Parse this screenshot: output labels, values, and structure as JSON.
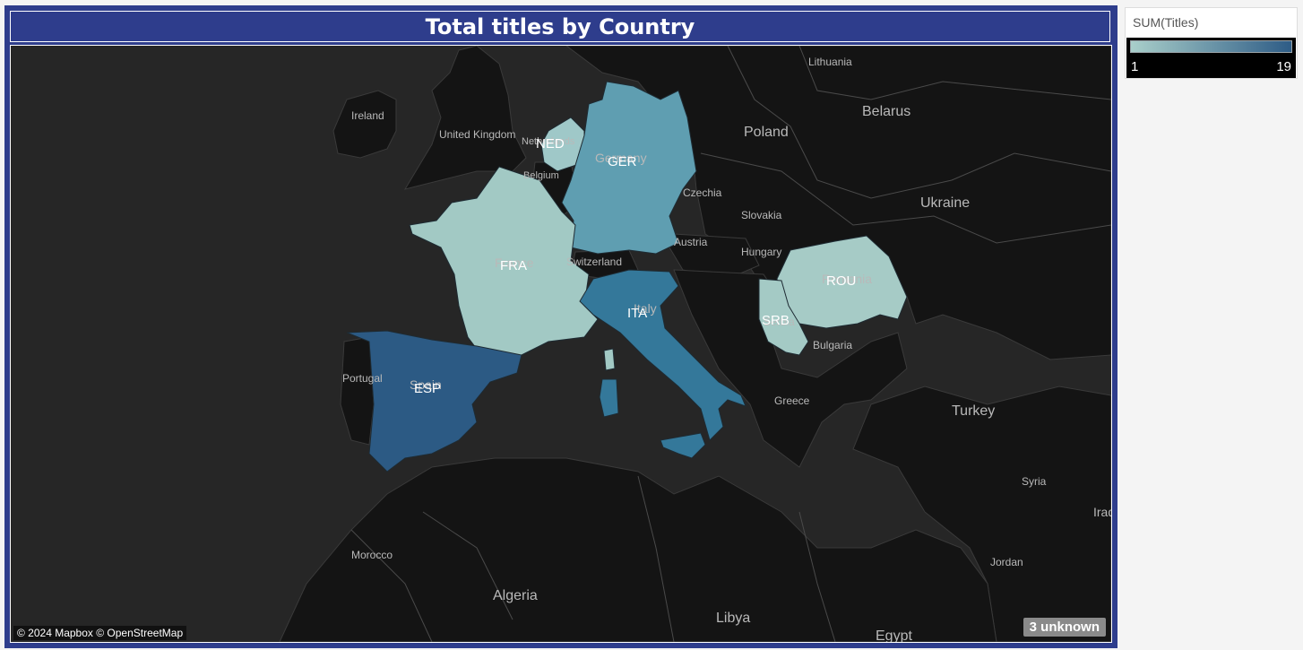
{
  "title": "Total titles by Country",
  "legend": {
    "title": "SUM(Titles)",
    "min": "1",
    "max": "19",
    "color_low": "#a9cfca",
    "color_high": "#2e5c86"
  },
  "map": {
    "background_color": "#262626",
    "countries": [
      {
        "code": "NED",
        "color": "#9fc8c8"
      },
      {
        "code": "GER",
        "color": "#5f9eb1"
      },
      {
        "code": "FRA",
        "color": "#a2c9c4"
      },
      {
        "code": "ITA",
        "color": "#34789a"
      },
      {
        "code": "ESP",
        "color": "#2c5a84"
      },
      {
        "code": "ROU",
        "color": "#a6cbc6"
      },
      {
        "code": "SRB",
        "color": "#a4cac5"
      }
    ],
    "background_labels": [
      "Lithuania",
      "Belarus",
      "Poland",
      "Ireland",
      "United Kingdom",
      "Netherlands",
      "Belgium",
      "Germany",
      "Czechia",
      "Slovakia",
      "Ukraine",
      "Austria",
      "Hungary",
      "Switzerland",
      "France",
      "Romania",
      "Italy",
      "Serbia",
      "Bulgaria",
      "Portugal",
      "Spain",
      "Greece",
      "Turkey",
      "Syria",
      "Iraq",
      "Morocco",
      "Algeria",
      "Libya",
      "Egypt",
      "Jordan"
    ],
    "attribution": "© 2024 Mapbox © OpenStreetMap",
    "unknown_badge": "3 unknown"
  }
}
